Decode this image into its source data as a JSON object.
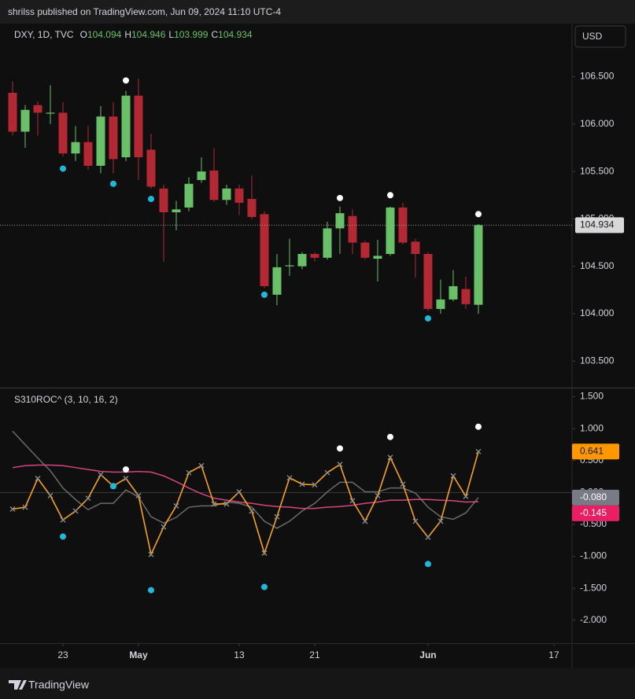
{
  "header": {
    "publisher": "shrilss published on TradingView.com, Jun 09, 2024 11:10 UTC-4",
    "currency": "USD",
    "brand": "TradingView"
  },
  "chart_data": [
    {
      "type": "candlestick",
      "title": "DXY, 1D, TVC",
      "ohlc_labels": [
        "O",
        "H",
        "L",
        "C"
      ],
      "up_color": "#6abf69",
      "down_color": "#b22833",
      "xlim": [
        -1,
        44.44
      ],
      "xticks": [
        {
          "value": 4,
          "label": "23"
        },
        {
          "value": 10,
          "label": "May"
        },
        {
          "value": 18,
          "label": "13"
        },
        {
          "value": 24,
          "label": "21"
        },
        {
          "value": 33,
          "label": "Jun"
        },
        {
          "value": 43,
          "label": "17"
        }
      ],
      "ylim": [
        103.22,
        107.06
      ],
      "yticks": [
        {
          "value": 106.5,
          "label": "106.500"
        },
        {
          "value": 106,
          "label": "106.000"
        },
        {
          "value": 105.5,
          "label": "105.500"
        },
        {
          "value": 105,
          "label": "105.000"
        },
        {
          "value": 104.5,
          "label": "104.500"
        },
        {
          "value": 104,
          "label": "104.000"
        },
        {
          "value": 103.5,
          "label": "103.500"
        }
      ],
      "open": [
        106.33,
        105.92,
        106.2,
        106.11,
        106.12,
        105.69,
        105.81,
        105.56,
        106.08,
        105.65,
        106.3,
        105.73,
        105.32,
        105.07,
        105.12,
        105.41,
        105.51,
        105.2,
        105.32,
        105.21,
        105.05,
        104.2,
        104.5,
        104.5,
        104.63,
        104.59,
        104.9,
        105.03,
        104.75,
        104.58,
        104.63,
        105.12,
        104.76,
        104.63,
        104.05,
        104.15,
        104.26,
        104.094
      ],
      "high": [
        106.45,
        106.2,
        106.24,
        106.41,
        106.23,
        105.98,
        105.98,
        106.19,
        106.23,
        106.35,
        106.48,
        105.9,
        105.36,
        105.19,
        105.44,
        105.65,
        105.75,
        105.36,
        105.36,
        105.46,
        105.08,
        104.63,
        104.79,
        104.65,
        104.65,
        104.97,
        105.13,
        105.1,
        104.77,
        104.78,
        105.13,
        105.17,
        104.79,
        104.65,
        104.36,
        104.46,
        104.39,
        104.946
      ],
      "low": [
        105.88,
        105.75,
        105.88,
        106.0,
        105.66,
        105.61,
        105.52,
        105.48,
        105.48,
        105.61,
        105.41,
        105.32,
        104.55,
        104.88,
        105.08,
        105.38,
        105.18,
        105.15,
        105.04,
        105.0,
        104.27,
        104.09,
        104.4,
        104.47,
        104.55,
        104.57,
        104.63,
        104.63,
        104.57,
        104.34,
        104.61,
        104.73,
        104.38,
        104.03,
        104.0,
        104.13,
        104.05,
        103.999
      ],
      "close": [
        105.92,
        106.15,
        106.12,
        106.12,
        105.69,
        105.81,
        105.56,
        106.08,
        105.63,
        106.3,
        105.65,
        105.34,
        105.07,
        105.1,
        105.37,
        105.5,
        105.2,
        105.32,
        105.17,
        105.02,
        104.29,
        104.49,
        104.51,
        104.63,
        104.59,
        104.9,
        105.06,
        104.75,
        104.59,
        104.61,
        105.12,
        104.75,
        104.63,
        104.05,
        104.15,
        104.29,
        104.1,
        104.934
      ],
      "markers": [
        {
          "color": "#ffffff",
          "x": [
            9,
            26,
            30,
            37
          ],
          "values": [
            106.46,
            105.22,
            105.25,
            105.05
          ]
        },
        {
          "color": "#1fb8d8",
          "x": [
            4,
            8,
            11,
            20,
            33
          ],
          "values": [
            105.53,
            105.37,
            105.21,
            104.2,
            103.95
          ]
        }
      ]
    },
    {
      "type": "line",
      "title": "S310ROC^ (3, 10, 16, 2)",
      "xlim": [
        -1,
        44.44
      ],
      "ylim": [
        -2.36,
        1.63
      ],
      "yticks": [
        {
          "value": 1.5,
          "label": "1.500"
        },
        {
          "value": 1,
          "label": "1.000"
        },
        {
          "value": 0.5,
          "label": "0.500"
        },
        {
          "value": 0,
          "label": "0.000"
        },
        {
          "value": -0.5,
          "label": "-0.500"
        },
        {
          "value": -1,
          "label": "-1.000"
        },
        {
          "value": -1.5,
          "label": "-1.500"
        },
        {
          "value": -2,
          "label": "-2.000"
        }
      ],
      "series": [
        {
          "color": "#6b6b6b",
          "values": [
            0.96,
            0.75,
            0.54,
            0.34,
            0.07,
            -0.11,
            -0.27,
            -0.17,
            -0.17,
            0.04,
            -0.07,
            -0.38,
            -0.48,
            -0.39,
            -0.23,
            -0.21,
            -0.21,
            -0.15,
            -0.17,
            -0.23,
            -0.45,
            -0.56,
            -0.45,
            -0.29,
            -0.17,
            0.01,
            0.16,
            0.16,
            0.01,
            0.01,
            0.07,
            0.07,
            -0.01,
            -0.23,
            -0.38,
            -0.42,
            -0.32,
            -0.08
          ],
          "last_label": "-0.080",
          "label_color": "#787b86"
        },
        {
          "color": "#d6457f",
          "values": [
            0.39,
            0.42,
            0.43,
            0.43,
            0.42,
            0.39,
            0.36,
            0.33,
            0.32,
            0.32,
            0.33,
            0.32,
            0.26,
            0.17,
            0.07,
            -0.02,
            -0.09,
            -0.12,
            -0.15,
            -0.17,
            -0.2,
            -0.22,
            -0.23,
            -0.25,
            -0.25,
            -0.23,
            -0.22,
            -0.2,
            -0.17,
            -0.15,
            -0.12,
            -0.12,
            -0.11,
            -0.11,
            -0.12,
            -0.13,
            -0.15,
            -0.145
          ],
          "label_color": "#e91e63"
        },
        {
          "color": "#f7a21b",
          "crosses": true,
          "values": [
            -0.26,
            -0.23,
            0.22,
            -0.05,
            -0.43,
            -0.29,
            -0.09,
            0.28,
            0.1,
            0.22,
            -0.05,
            -0.97,
            -0.54,
            -0.21,
            0.31,
            0.42,
            -0.18,
            -0.18,
            0.01,
            -0.29,
            -0.95,
            -0.38,
            0.23,
            0.13,
            0.12,
            0.31,
            0.44,
            -0.13,
            -0.45,
            -0.05,
            0.55,
            0.13,
            -0.45,
            -0.7,
            -0.45,
            0.26,
            -0.06,
            0.641
          ],
          "label_color": "#ff9800"
        }
      ],
      "markers": [
        {
          "color": "#ffffff",
          "x": [
            9,
            26,
            30,
            37
          ],
          "values": [
            0.36,
            0.69,
            0.87,
            1.03
          ]
        },
        {
          "color": "#1fb8d8",
          "x": [
            4,
            8,
            11,
            20,
            33
          ],
          "values": [
            -0.69,
            0.1,
            -1.53,
            -1.48,
            -1.12
          ]
        }
      ]
    }
  ]
}
